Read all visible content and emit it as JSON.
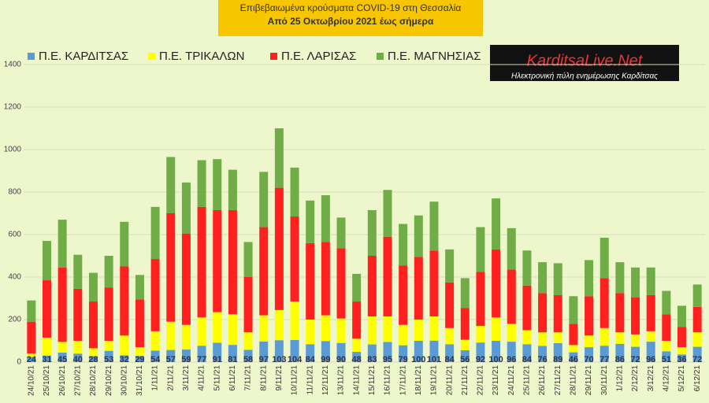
{
  "chart_data": {
    "type": "bar",
    "stacked": true,
    "title": "Επιβεβαιωμένα κρούσματα COVID-19 στη Θεσσαλία",
    "subtitle": "Από 25 Οκτωβρίου 2021 έως σήμερα",
    "logo": {
      "name": "KarditsaLive.Net",
      "tagline": "Ηλεκτρονική πύλη ενημέρωσης Καρδίτσας"
    },
    "categories": [
      "24/10/21",
      "25/10/21",
      "26/10/21",
      "27/10/21",
      "28/10/21",
      "29/10/21",
      "30/10/21",
      "31/10/21",
      "1/11/21",
      "2/11/21",
      "3/11/21",
      "4/11/21",
      "5/11/21",
      "6/11/21",
      "7/11/21",
      "8/11/21",
      "9/11/21",
      "10/11/21",
      "11/11/21",
      "12/11/21",
      "13/11/21",
      "14/11/21",
      "15/11/21",
      "16/11/21",
      "17/11/21",
      "18/11/21",
      "19/11/21",
      "20/11/21",
      "21/11/21",
      "22/11/21",
      "23/11/21",
      "24/11/21",
      "25/11/21",
      "26/11/21",
      "27/11/21",
      "28/11/21",
      "29/11/21",
      "30/11/21",
      "1/12/21",
      "2/12/21",
      "3/12/21",
      "4/12/21",
      "5/12/21",
      "6/12/21"
    ],
    "series": [
      {
        "name": "Π.Ε. ΚΑΡΔΙΤΣΑΣ",
        "color": "#5b9bd5",
        "show_labels": true,
        "values": [
          24,
          31,
          45,
          40,
          28,
          53,
          32,
          29,
          54,
          57,
          59,
          77,
          91,
          81,
          58,
          97,
          103,
          104,
          84,
          99,
          90,
          48,
          83,
          95,
          79,
          100,
          101,
          84,
          56,
          92,
          100,
          96,
          84,
          76,
          89,
          46,
          70,
          77,
          86,
          72,
          96,
          51,
          36,
          72
        ]
      },
      {
        "name": "Π.Ε. ΤΡΙΚΑΛΩΝ",
        "color": "#ffff00",
        "values": [
          16,
          84,
          50,
          60,
          37,
          47,
          93,
          41,
          91,
          133,
          116,
          133,
          144,
          144,
          82,
          123,
          142,
          181,
          116,
          121,
          115,
          62,
          132,
          120,
          96,
          100,
          114,
          76,
          49,
          78,
          110,
          84,
          66,
          64,
          51,
          34,
          55,
          83,
          54,
          58,
          49,
          49,
          34,
          68
        ]
      },
      {
        "name": "Π.Ε. ΛΑΡΙΣΑΣ",
        "color": "#ff2020",
        "values": [
          150,
          270,
          350,
          245,
          220,
          250,
          325,
          225,
          340,
          510,
          430,
          520,
          480,
          490,
          260,
          415,
          575,
          400,
          360,
          345,
          330,
          175,
          285,
          375,
          280,
          295,
          310,
          215,
          150,
          255,
          320,
          255,
          210,
          185,
          175,
          100,
          185,
          235,
          185,
          175,
          170,
          125,
          95,
          120
        ]
      },
      {
        "name": "Π.Ε. ΜΑΓΝΗΣΙΑΣ",
        "color": "#70ad47",
        "values": [
          100,
          185,
          225,
          160,
          135,
          150,
          210,
          115,
          245,
          265,
          240,
          220,
          240,
          190,
          165,
          260,
          280,
          230,
          200,
          220,
          145,
          130,
          215,
          220,
          195,
          195,
          230,
          155,
          140,
          210,
          240,
          195,
          165,
          145,
          150,
          130,
          170,
          190,
          145,
          140,
          130,
          110,
          100,
          105
        ]
      }
    ],
    "ylim": [
      0,
      1400
    ],
    "yticks": [
      0,
      200,
      400,
      600,
      800,
      1000,
      1200,
      1400
    ],
    "grid": true,
    "legend": "top"
  }
}
